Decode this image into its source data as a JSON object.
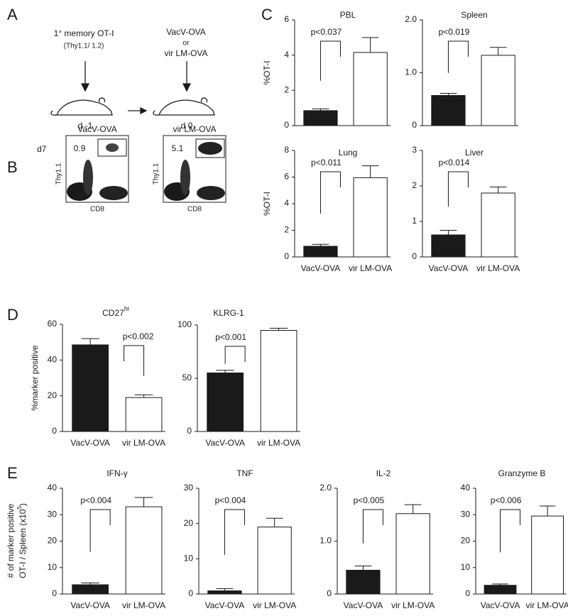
{
  "panels": [
    "A",
    "B",
    "C",
    "D",
    "E"
  ],
  "schematic": {
    "donor": "1° memory OT-I",
    "donor_marker": "(Thy1.1/ 1.2)",
    "infection": [
      "VacV-OVA",
      "or",
      "vir LM-OVA"
    ],
    "days": [
      "d -1",
      "d 0"
    ]
  },
  "flow": {
    "day": "d7",
    "xlabel": "CD8",
    "ylabel": "Thy1.1",
    "plots": [
      {
        "title": "VacV-OVA",
        "gate": 0.9
      },
      {
        "title": "vir LM-OVA",
        "gate": 5.1
      }
    ]
  },
  "e_ylabel": [
    "# of marker positive",
    "OT-I / Spleen (x10",
    "5",
    ")"
  ],
  "chart_data": [
    {
      "type": "bar",
      "title": "PBL",
      "ylabel": "%OT-I",
      "categories": [
        null,
        null
      ],
      "values": [
        0.85,
        4.15
      ],
      "errors": [
        0.1,
        0.85
      ],
      "colors": [
        "#1a1a1a",
        "#ffffff"
      ],
      "ylim": [
        0,
        6
      ],
      "yticks": [
        0,
        2,
        4,
        6
      ],
      "annotation": "p<0.037",
      "annotation_bar": 0
    },
    {
      "type": "bar",
      "title": "Spleen",
      "categories": [
        null,
        null
      ],
      "values": [
        0.57,
        1.33
      ],
      "errors": [
        0.04,
        0.15
      ],
      "colors": [
        "#1a1a1a",
        "#ffffff"
      ],
      "ylim": [
        0,
        2
      ],
      "yticks": [
        0,
        {
          "value": 1,
          "label": "1.0"
        },
        {
          "value": 2,
          "label": "2.0"
        }
      ],
      "annotation": "p<0.019",
      "annotation_bar": 0
    },
    {
      "type": "bar",
      "title": "Lung",
      "ylabel": "%OT-I",
      "categories": [
        "VacV-OVA",
        "vir LM-OVA"
      ],
      "values": [
        0.8,
        5.95
      ],
      "errors": [
        0.15,
        0.9
      ],
      "colors": [
        "#1a1a1a",
        "#ffffff"
      ],
      "ylim": [
        0,
        8
      ],
      "yticks": [
        0,
        2,
        4,
        6,
        8
      ],
      "annotation": "p<0.011",
      "annotation_bar": 0
    },
    {
      "type": "bar",
      "title": "Liver",
      "categories": [
        "VacV-OVA",
        "vir LM-OVA"
      ],
      "values": [
        0.62,
        1.8
      ],
      "errors": [
        0.13,
        0.17
      ],
      "colors": [
        "#1a1a1a",
        "#ffffff"
      ],
      "ylim": [
        0,
        3
      ],
      "yticks": [
        0,
        1,
        2,
        3
      ],
      "annotation": "p<0.014",
      "annotation_bar": 0
    },
    {
      "type": "bar",
      "title": "CD27",
      "title_sup": "hi",
      "ylabel": "%marker positive",
      "categories": [
        "VacV-OVA",
        "vir LM-OVA"
      ],
      "values": [
        48.5,
        19
      ],
      "errors": [
        3.5,
        1.5
      ],
      "colors": [
        "#1a1a1a",
        "#ffffff"
      ],
      "ylim": [
        0,
        60
      ],
      "yticks": [
        0,
        20,
        40,
        60
      ],
      "annotation": "p<0.002",
      "annotation_bar": 1
    },
    {
      "type": "bar",
      "title": "KLRG-1",
      "categories": [
        "VacV-OVA",
        "vir LM-OVA"
      ],
      "values": [
        55,
        95
      ],
      "errors": [
        2.5,
        2
      ],
      "colors": [
        "#1a1a1a",
        "#ffffff"
      ],
      "ylim": [
        0,
        100
      ],
      "yticks": [
        0,
        50,
        100
      ],
      "annotation": "p<0.001",
      "annotation_bar": 0
    },
    {
      "type": "bar",
      "title": "IFN-γ",
      "categories": [
        "VacV-OVA",
        "vir LM-OVA"
      ],
      "values": [
        3.5,
        33
      ],
      "errors": [
        0.7,
        3.5
      ],
      "colors": [
        "#1a1a1a",
        "#ffffff"
      ],
      "ylim": [
        0,
        40
      ],
      "yticks": [
        0,
        10,
        20,
        30,
        40
      ],
      "annotation": "p<0.004",
      "annotation_bar": 0
    },
    {
      "type": "bar",
      "title": "TNF",
      "categories": [
        "VacV-OVA",
        "vir LM-OVA"
      ],
      "values": [
        0.9,
        19
      ],
      "errors": [
        0.6,
        2.5
      ],
      "colors": [
        "#1a1a1a",
        "#ffffff"
      ],
      "ylim": [
        0,
        30
      ],
      "yticks": [
        0,
        10,
        20,
        30
      ],
      "annotation": "p<0.004",
      "annotation_bar": 0
    },
    {
      "type": "bar",
      "title": "IL-2",
      "categories": [
        "VacV-OVA",
        "vir LM-OVA"
      ],
      "values": [
        0.45,
        1.52
      ],
      "errors": [
        0.08,
        0.17
      ],
      "colors": [
        "#1a1a1a",
        "#ffffff"
      ],
      "ylim": [
        0,
        2
      ],
      "yticks": [
        0,
        {
          "value": 1,
          "label": "1.0"
        },
        {
          "value": 2,
          "label": "2.0"
        }
      ],
      "annotation": "p<0.005",
      "annotation_bar": 0
    },
    {
      "type": "bar",
      "title": "Granzyme B",
      "categories": [
        "VacV-OVA",
        "vir LM-OVA"
      ],
      "values": [
        3.3,
        29.5
      ],
      "errors": [
        0.5,
        3.8
      ],
      "colors": [
        "#1a1a1a",
        "#ffffff"
      ],
      "ylim": [
        0,
        40
      ],
      "yticks": [
        0,
        10,
        20,
        30,
        40
      ],
      "annotation": "p<0.006",
      "annotation_bar": 0
    }
  ]
}
